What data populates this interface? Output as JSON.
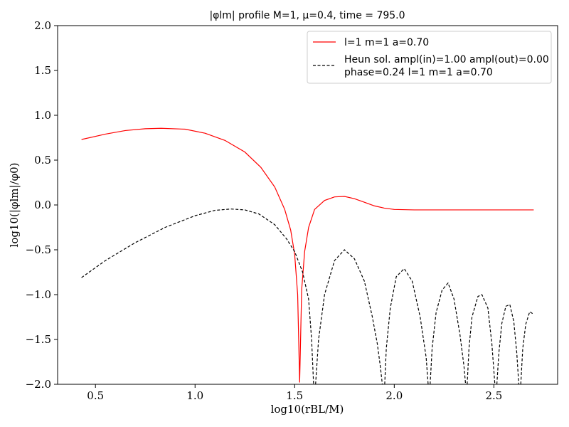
{
  "chart_data": {
    "type": "line",
    "title": "|φlm| profile M=1, μ=0.4, time = 795.0",
    "xlabel": "log10(rBL/M)",
    "ylabel": "log10(|φlm|/φ0)",
    "xlim": [
      0.31,
      2.82
    ],
    "ylim": [
      -2.0,
      2.0
    ],
    "xticks": [
      0.5,
      1.0,
      1.5,
      2.0,
      2.5
    ],
    "yticks": [
      -2.0,
      -1.5,
      -1.0,
      -0.5,
      0.0,
      0.5,
      1.0,
      1.5,
      2.0
    ],
    "xtick_labels": [
      "0.5",
      "1.0",
      "1.5",
      "2.0",
      "2.5"
    ],
    "ytick_labels": [
      "−2.0",
      "−1.5",
      "−1.0",
      "−0.5",
      "0.0",
      "0.5",
      "1.0",
      "1.5",
      "2.0"
    ],
    "grid": false,
    "legend_position": "top-right",
    "series": [
      {
        "name": "l=1 m=1 a=0.70",
        "color": "#ff0000",
        "style": "solid",
        "x": [
          0.43,
          0.55,
          0.65,
          0.75,
          0.83,
          0.95,
          1.05,
          1.15,
          1.25,
          1.33,
          1.4,
          1.45,
          1.48,
          1.5,
          1.515,
          1.525,
          1.535,
          1.55,
          1.57,
          1.6,
          1.65,
          1.7,
          1.75,
          1.8,
          1.85,
          1.9,
          1.95,
          2.0,
          2.1,
          2.3,
          2.5,
          2.7
        ],
        "y": [
          0.73,
          0.79,
          0.83,
          0.85,
          0.855,
          0.845,
          0.8,
          0.72,
          0.59,
          0.42,
          0.2,
          -0.05,
          -0.28,
          -0.55,
          -1.0,
          -1.98,
          -0.95,
          -0.52,
          -0.25,
          -0.05,
          0.05,
          0.09,
          0.095,
          0.07,
          0.03,
          -0.01,
          -0.035,
          -0.05,
          -0.055,
          -0.055,
          -0.055,
          -0.055
        ]
      },
      {
        "name": "Heun sol. ampl(in)=1.00 ampl(out)=0.00",
        "name_line2": "phase=0.24 l=1 m=1 a=0.70",
        "color": "#000000",
        "style": "dashed",
        "segments": [
          {
            "x": [
              0.43,
              0.55,
              0.7,
              0.85,
              1.0,
              1.1,
              1.18,
              1.25,
              1.32,
              1.4,
              1.46,
              1.5,
              1.54,
              1.57,
              1.585,
              1.595
            ],
            "y": [
              -0.81,
              -0.62,
              -0.42,
              -0.25,
              -0.12,
              -0.06,
              -0.045,
              -0.055,
              -0.1,
              -0.22,
              -0.38,
              -0.52,
              -0.75,
              -1.05,
              -1.5,
              -2.0
            ]
          },
          {
            "x": [
              1.605,
              1.62,
              1.65,
              1.7,
              1.75,
              1.8,
              1.85,
              1.89,
              1.915,
              1.93,
              1.94
            ],
            "y": [
              -2.0,
              -1.5,
              -1.0,
              -0.62,
              -0.5,
              -0.6,
              -0.85,
              -1.25,
              -1.55,
              -1.8,
              -2.0
            ]
          },
          {
            "x": [
              1.952,
              1.96,
              1.98,
              2.01,
              2.05,
              2.09,
              2.13,
              2.16,
              2.17
            ],
            "y": [
              -2.0,
              -1.6,
              -1.15,
              -0.8,
              -0.71,
              -0.85,
              -1.25,
              -1.7,
              -2.0
            ]
          },
          {
            "x": [
              2.18,
              2.19,
              2.21,
              2.24,
              2.27,
              2.3,
              2.33,
              2.35,
              2.358
            ],
            "y": [
              -2.0,
              -1.6,
              -1.2,
              -0.95,
              -0.87,
              -1.05,
              -1.45,
              -1.8,
              -2.0
            ]
          },
          {
            "x": [
              2.366,
              2.375,
              2.39,
              2.42,
              2.44,
              2.47,
              2.49,
              2.505
            ],
            "y": [
              -2.0,
              -1.6,
              -1.25,
              -1.02,
              -1.0,
              -1.15,
              -1.55,
              -2.0
            ]
          },
          {
            "x": [
              2.515,
              2.525,
              2.54,
              2.56,
              2.58,
              2.6,
              2.615,
              2.625
            ],
            "y": [
              -2.0,
              -1.65,
              -1.32,
              -1.13,
              -1.11,
              -1.3,
              -1.65,
              -2.0
            ]
          },
          {
            "x": [
              2.635,
              2.645,
              2.66,
              2.68,
              2.7
            ],
            "y": [
              -2.0,
              -1.6,
              -1.33,
              -1.19,
              -1.22
            ]
          }
        ]
      }
    ]
  }
}
